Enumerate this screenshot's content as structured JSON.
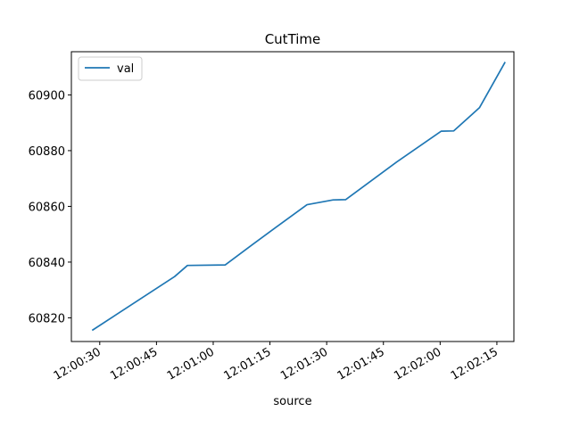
{
  "chart_data": {
    "type": "line",
    "title": "CutTime",
    "xlabel": "source",
    "ylabel": "",
    "x_ticks": [
      "12:00:30",
      "12:00:45",
      "12:01:00",
      "12:01:15",
      "12:01:30",
      "12:01:45",
      "12:02:00",
      "12:02:15"
    ],
    "x_tick_seconds": [
      30,
      45,
      60,
      75,
      90,
      105,
      120,
      135
    ],
    "y_ticks": [
      60820,
      60840,
      60860,
      60880,
      60900
    ],
    "xlim_seconds": [
      22.5,
      139.5
    ],
    "ylim": [
      60811.5,
      60915.5
    ],
    "legend": {
      "position": "top-left",
      "entries": [
        "val"
      ]
    },
    "grid": false,
    "series": [
      {
        "name": "val",
        "color": "#1f77b4",
        "x_seconds": [
          28,
          49.8,
          53.2,
          63.2,
          70.3,
          77.4,
          84.8,
          91.7,
          95.0,
          108.5,
          120.3,
          123.6,
          130.4,
          137.2
        ],
        "values": [
          60815.5,
          60834.8,
          60838.8,
          60839.0,
          60846.2,
          60853.3,
          60860.6,
          60862.3,
          60862.4,
          60875.9,
          60887.0,
          60887.1,
          60895.4,
          60911.8
        ]
      }
    ]
  }
}
